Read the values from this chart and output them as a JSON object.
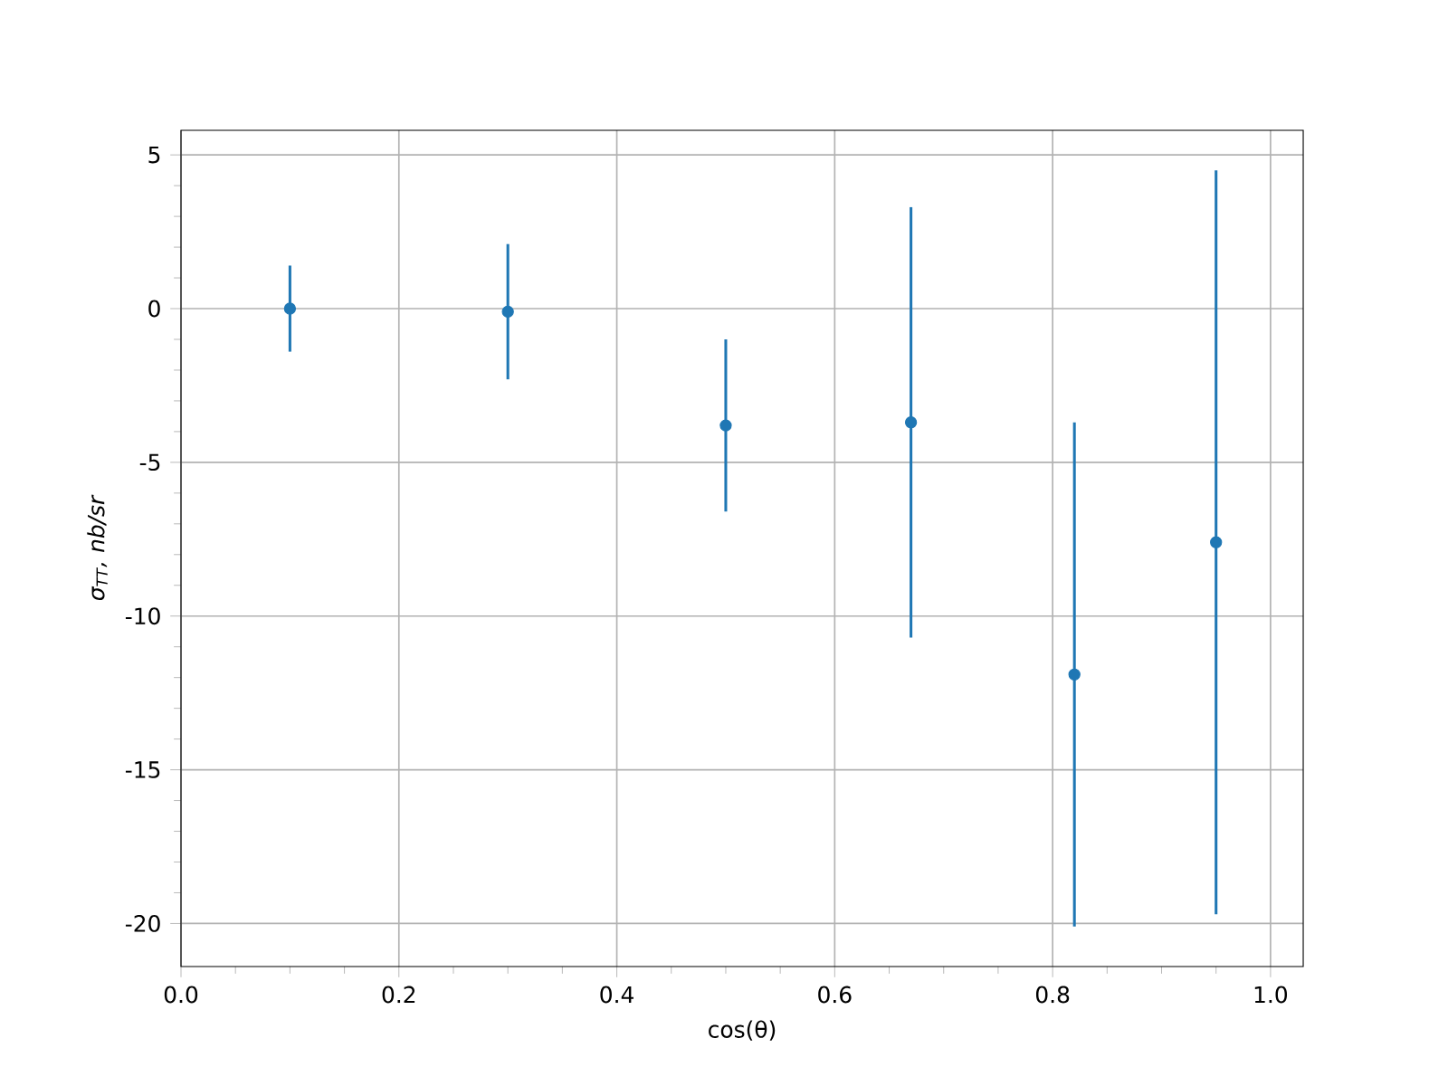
{
  "chart_data": {
    "type": "scatter",
    "xlabel": "cos(θ)",
    "ylabel": "σ$_{TT}$, nb/sr",
    "x": [
      0.1,
      0.3,
      0.5,
      0.67,
      0.82,
      0.95
    ],
    "series": [
      {
        "color": "#1f77b4",
        "values": [
          0.0,
          -0.1,
          -3.8,
          -3.7,
          -11.9,
          -7.6
        ],
        "errors": [
          1.4,
          2.2,
          2.8,
          7.0,
          8.2,
          12.1
        ]
      }
    ],
    "xlim": [
      0,
      1.03
    ],
    "ylim": [
      -21.4,
      5.8
    ],
    "xticks": [
      {
        "value": 0,
        "label": "0.0"
      },
      0.2,
      0.4,
      0.6,
      0.8,
      {
        "value": 1,
        "label": "1.0"
      }
    ],
    "yticks": [
      5,
      0,
      -5,
      -10,
      -15,
      -20
    ],
    "grid": true,
    "marker": "circle"
  }
}
